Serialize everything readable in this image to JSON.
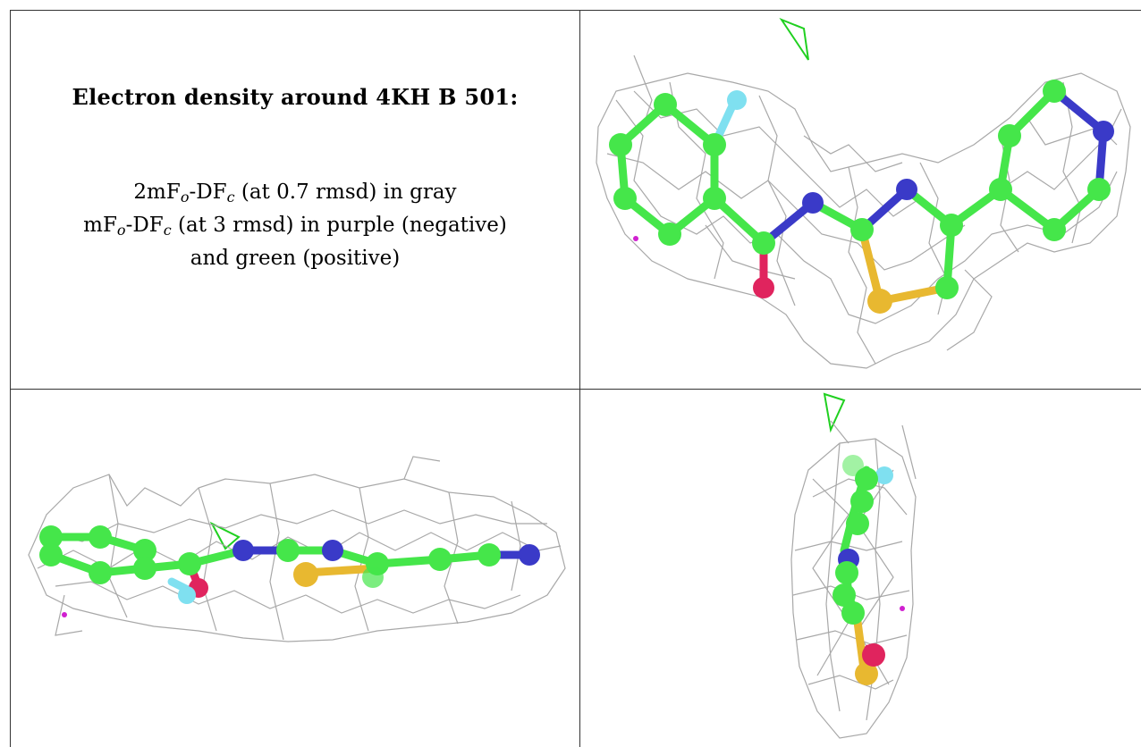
{
  "caption": {
    "title": "Electron density around 4KH B 501:",
    "line1_prefix": "2mF",
    "line1_sub1": "o",
    "line1_mid": "-DF",
    "line1_sub2": "c",
    "line1_rest": " (at 0.7 rmsd) in gray",
    "line2_prefix": "mF",
    "line2_sub1": "o",
    "line2_mid": "-DF",
    "line2_sub2": "c",
    "line2_rest": " (at 3 rmsd) in purple (negative)",
    "line3": "and green (positive)"
  },
  "colors": {
    "carbon": "#45e64a",
    "nitrogen": "#3a3ac8",
    "oxygen": "#e0245e",
    "sulfur": "#e8b830",
    "fluorine": "#7fe0f0",
    "mesh": "#a8a8a8",
    "negative_density": "#d020d0",
    "positive_density": "#20d020"
  },
  "views": [
    {
      "name": "view-front",
      "icon": "molecule-density-front-icon"
    },
    {
      "name": "view-edge",
      "icon": "molecule-density-edge-icon"
    },
    {
      "name": "view-end",
      "icon": "molecule-density-end-icon"
    }
  ]
}
